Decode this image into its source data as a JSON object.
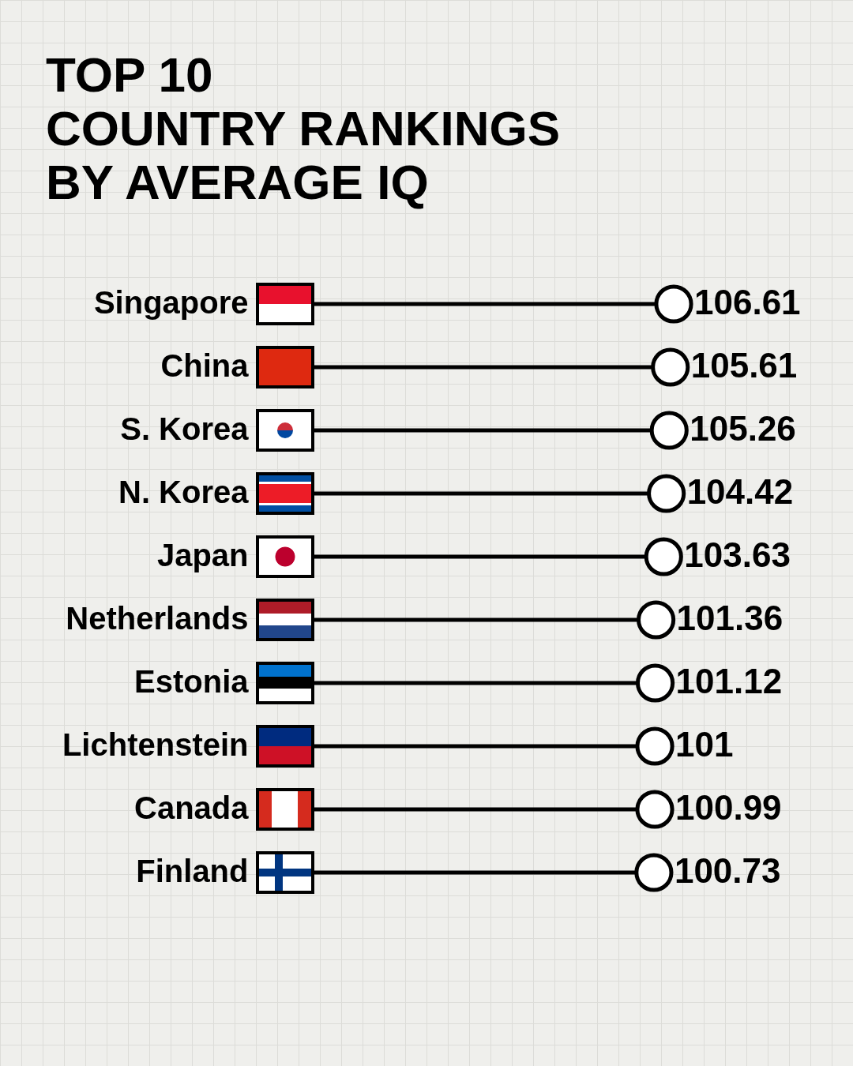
{
  "chart_data": {
    "type": "lollipop",
    "title": [
      "TOP 10",
      "COUNTRY RANKINGS",
      "BY AVERAGE IQ"
    ],
    "categories": [
      "Singapore",
      "China",
      "S. Korea",
      "N. Korea",
      "Japan",
      "Netherlands",
      "Estonia",
      "Lichtenstein",
      "Canada",
      "Finland"
    ],
    "values": [
      106.61,
      105.61,
      105.26,
      104.42,
      103.63,
      101.36,
      101.12,
      101,
      100.99,
      100.73
    ],
    "color": "#000000",
    "data_labels": true,
    "orientation": "horizontal",
    "grid": true
  }
}
